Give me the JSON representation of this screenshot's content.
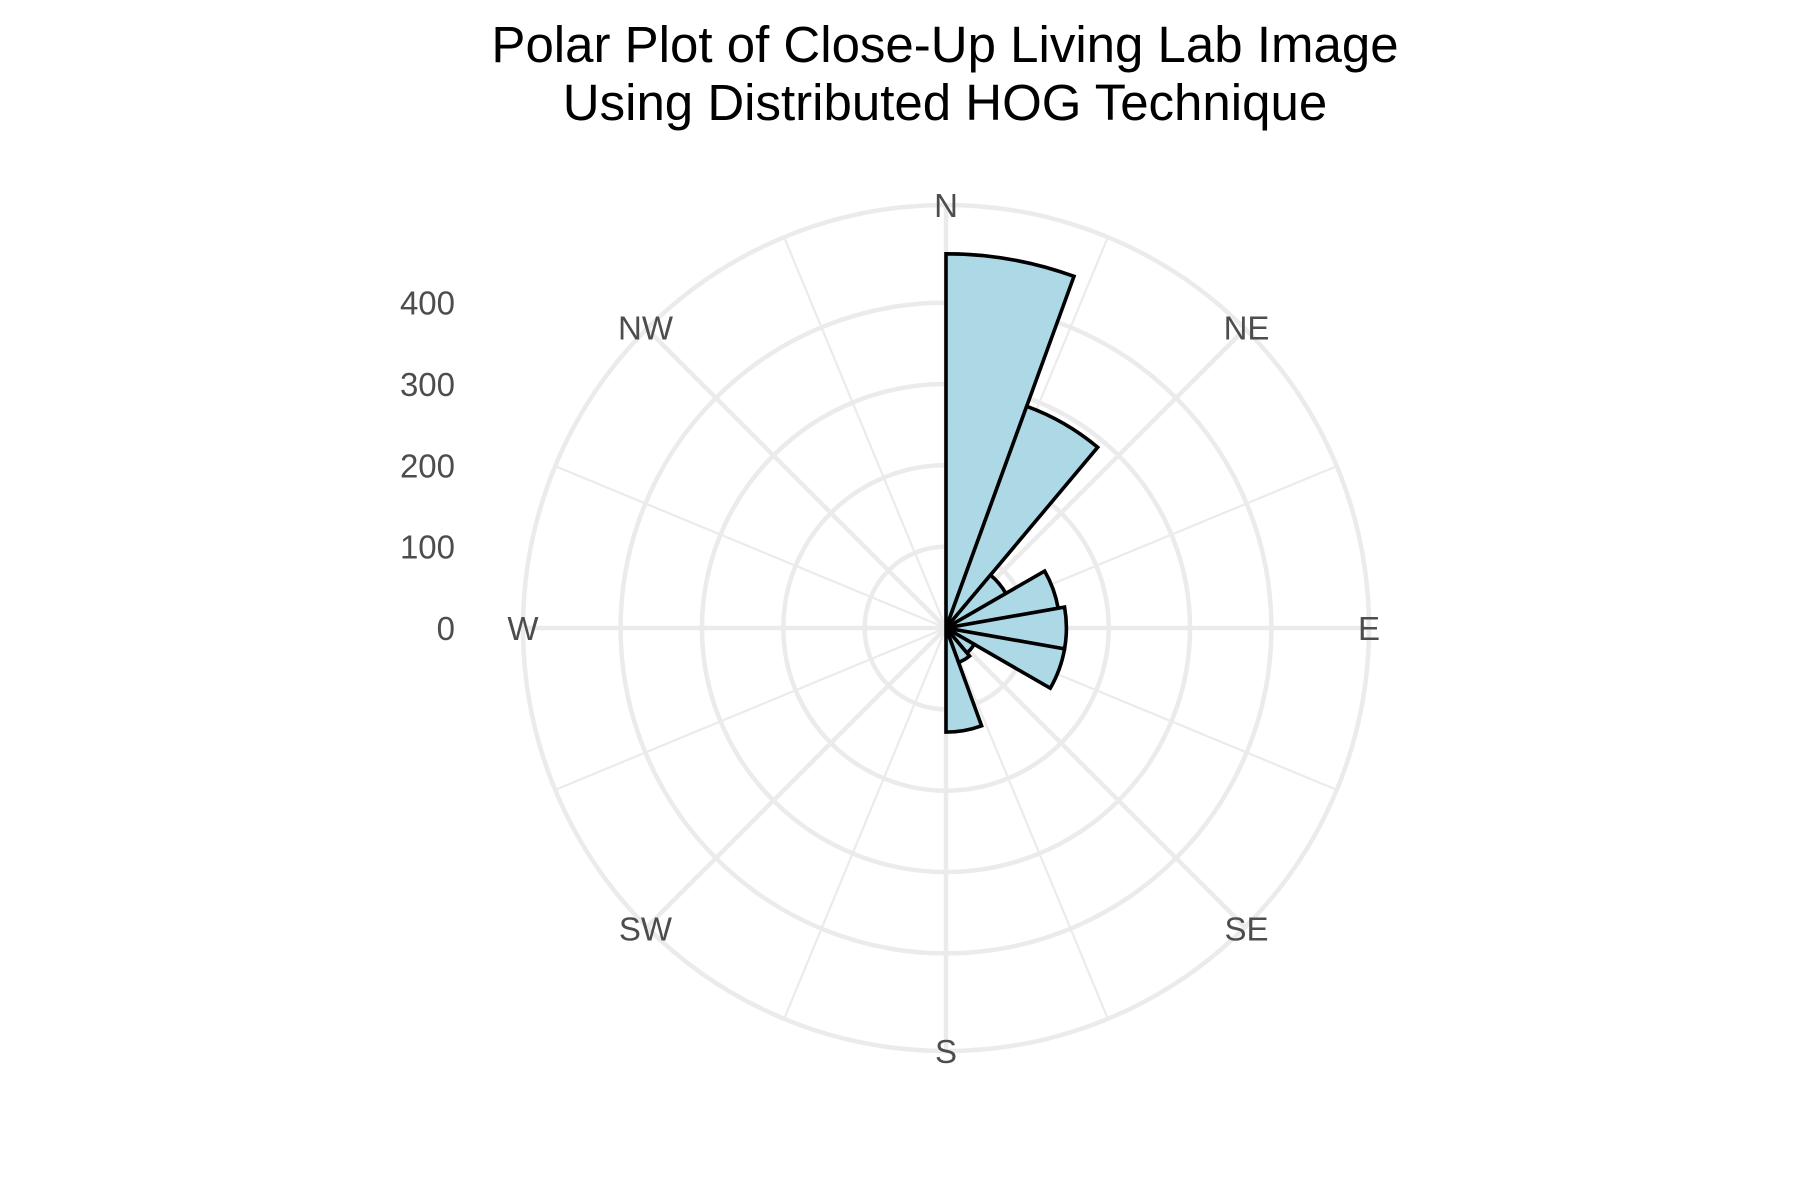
{
  "chart_data": {
    "type": "polar-bar",
    "title": "Polar Plot of Close-Up Living Lab Image\nUsing Distributed HOG Technique",
    "title_lines": [
      "Polar Plot of Close-Up Living Lab Image",
      "Using Distributed HOG Technique"
    ],
    "direction_labels": [
      "N",
      "NE",
      "E",
      "SE",
      "S",
      "SW",
      "W",
      "NW"
    ],
    "radial_ticks": [
      0,
      100,
      200,
      300,
      400
    ],
    "radial_tick_labels": [
      "0",
      "100",
      "200",
      "300",
      "400"
    ],
    "rmax": 520,
    "start_direction": "N",
    "rotation": "clockwise",
    "bin_width_degrees": 20,
    "angles_deg": [
      10,
      30,
      50,
      70,
      90,
      110,
      130,
      150,
      170,
      190,
      210,
      230,
      250,
      270,
      290,
      310,
      330,
      350
    ],
    "values": [
      460,
      290,
      85,
      140,
      148,
      148,
      40,
      45,
      128,
      0,
      0,
      0,
      0,
      0,
      0,
      0,
      0,
      0
    ],
    "grid": true,
    "colors": {
      "bar_fill": "#add8e6",
      "bar_stroke": "#000000",
      "grid": "#ebebeb",
      "title": "#000000",
      "labels": "#4d4d4d",
      "background": "#ffffff"
    }
  }
}
